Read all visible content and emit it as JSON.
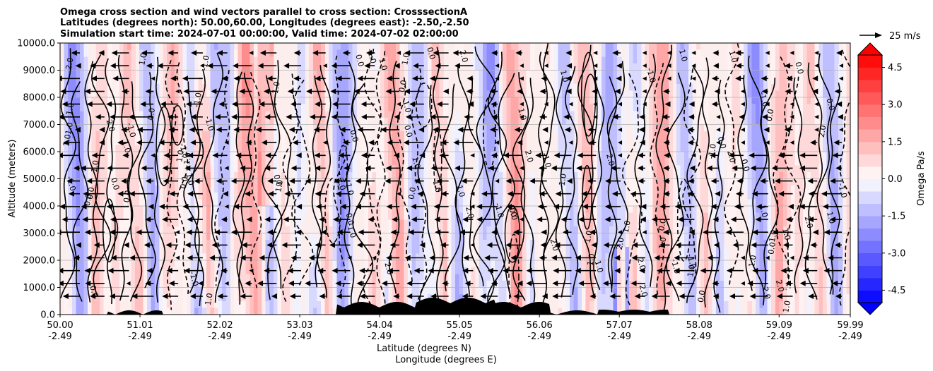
{
  "chart_data": {
    "type": "heatmap",
    "title_lines": [
      "Omega cross section and wind vectors parallel to cross section: CrosssectionA",
      "Latitudes (degrees north): 50.00,60.00, Longitudes (degrees east): -2.50,-2.50",
      "Simulation start time: 2024-07-01 00:00:00, Valid time: 2024-07-02 02:00:00"
    ],
    "xlabel_lines": [
      "Latitude (degrees N)",
      "Longitude (degrees E)"
    ],
    "ylabel": "Altitude (meters)",
    "x_ticks": [
      {
        "lat": "50.00",
        "lon": "-2.49"
      },
      {
        "lat": "51.01",
        "lon": "-2.49"
      },
      {
        "lat": "52.02",
        "lon": "-2.49"
      },
      {
        "lat": "53.03",
        "lon": "-2.49"
      },
      {
        "lat": "54.04",
        "lon": "-2.49"
      },
      {
        "lat": "55.05",
        "lon": "-2.49"
      },
      {
        "lat": "56.06",
        "lon": "-2.49"
      },
      {
        "lat": "57.07",
        "lon": "-2.49"
      },
      {
        "lat": "58.08",
        "lon": "-2.49"
      },
      {
        "lat": "59.09",
        "lon": "-2.49"
      },
      {
        "lat": "59.99",
        "lon": "-2.49"
      }
    ],
    "x_range": [
      50.0,
      59.99
    ],
    "y_range": [
      0,
      10000
    ],
    "y_ticks": [
      "0.0",
      "1000.0",
      "2000.0",
      "3000.0",
      "4000.0",
      "5000.0",
      "6000.0",
      "7000.0",
      "8000.0",
      "9000.0",
      "10000.0"
    ],
    "grid": true,
    "colorbar": {
      "label": "Omega Pa/s",
      "range": [
        -5,
        5
      ],
      "ticks": [
        "-4.5",
        "-3.0",
        "-1.5",
        "0.0",
        "1.5",
        "3.0",
        "4.5"
      ],
      "colormap": "bwr",
      "extend": "both"
    },
    "quiver_key": {
      "label": "25 m/s"
    },
    "contour_labels": [
      "0.0",
      "-1.0",
      "1.0",
      "2.0"
    ],
    "wind_direction": "southward (toward decreasing latitude)"
  }
}
